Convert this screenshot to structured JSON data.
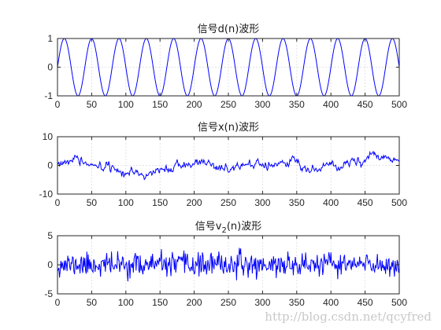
{
  "chart_data": [
    {
      "type": "line",
      "title": "信号d(n)波形",
      "title_parts": {
        "prefix": "信号d(n)波形",
        "subscript": "",
        "suffix": ""
      },
      "xlabel": "",
      "ylabel": "",
      "xlim": [
        0,
        500
      ],
      "ylim": [
        -1,
        1
      ],
      "xticks": [
        0,
        50,
        100,
        150,
        200,
        250,
        300,
        350,
        400,
        450,
        500
      ],
      "yticks": [
        -1,
        0,
        1
      ],
      "grid": true,
      "line_color": "#0000ff",
      "generator": {
        "kind": "sine",
        "amplitude": 1,
        "period": 40,
        "phase_deg": 0
      },
      "series": []
    },
    {
      "type": "line",
      "title": "信号x(n)波形",
      "title_parts": {
        "prefix": "信号x(n)波形",
        "subscript": "",
        "suffix": ""
      },
      "xlabel": "",
      "ylabel": "",
      "xlim": [
        0,
        500
      ],
      "ylim": [
        -10,
        10
      ],
      "xticks": [
        0,
        50,
        100,
        150,
        200,
        250,
        300,
        350,
        400,
        450,
        500
      ],
      "yticks": [
        -10,
        0,
        10
      ],
      "grid": true,
      "line_color": "#0000ff",
      "generator": {
        "kind": "random_smooth",
        "amplitude": 2.2,
        "seed": 7
      },
      "series": []
    },
    {
      "type": "line",
      "title": "信号v2(n)波形",
      "title_parts": {
        "prefix": "信号v",
        "subscript": "2",
        "suffix": "(n)波形"
      },
      "xlabel": "",
      "ylabel": "",
      "xlim": [
        0,
        500
      ],
      "ylim": [
        -5,
        5
      ],
      "xticks": [
        0,
        50,
        100,
        150,
        200,
        250,
        300,
        350,
        400,
        450,
        500
      ],
      "yticks": [
        -5,
        0,
        5
      ],
      "grid": true,
      "line_color": "#0000ff",
      "generator": {
        "kind": "white_noise",
        "amplitude": 1.0,
        "seed": 11
      },
      "series": []
    }
  ],
  "watermark": "http://blog.csdn.net/qcyfred"
}
